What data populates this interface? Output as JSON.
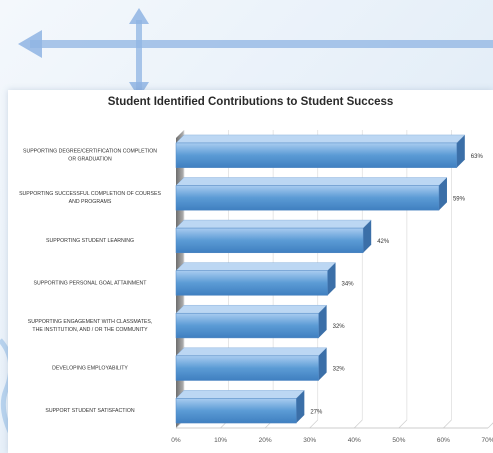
{
  "chart_data": {
    "type": "bar",
    "orientation": "horizontal",
    "title": "Student Identified Contributions to Student Success",
    "categories": [
      "SUPPORTING DEGREE/CERTIFICATION COMPLETION OR GRADUATION",
      "SUPPORTING SUCCESSFUL COMPLETION OF COURSES AND PROGRAMS",
      "SUPPORTING STUDENT LEARNING",
      "SUPPORTING PERSONAL GOAL ATTAINMENT",
      "SUPPORTING ENGAGEMENT WITH CLASSMATES, THE INSTITUTION, AND / OR THE COMMUNITY",
      "DEVELOPING EMPLOYABILITY",
      "SUPPORT STUDENT SATISFACTION"
    ],
    "category_lines": [
      [
        "SUPPORTING DEGREE/CERTIFICATION COMPLETION",
        "OR GRADUATION"
      ],
      [
        "SUPPORTING SUCCESSFUL COMPLETION OF COURSES",
        "AND PROGRAMS"
      ],
      [
        "SUPPORTING STUDENT LEARNING"
      ],
      [
        "SUPPORTING PERSONAL GOAL ATTAINMENT"
      ],
      [
        "SUPPORTING ENGAGEMENT WITH CLASSMATES,",
        "THE INSTITUTION, AND / OR THE COMMUNITY"
      ],
      [
        "DEVELOPING EMPLOYABILITY"
      ],
      [
        "SUPPORT STUDENT SATISFACTION"
      ]
    ],
    "values": [
      63,
      59,
      42,
      34,
      32,
      32,
      27
    ],
    "value_labels": [
      "63%",
      "59%",
      "42%",
      "34%",
      "32%",
      "32%",
      "27%"
    ],
    "xlim": [
      0,
      70
    ],
    "ticks": [
      0,
      10,
      20,
      30,
      40,
      50,
      60,
      70
    ],
    "tick_labels": [
      "0%",
      "10%",
      "20%",
      "30%",
      "40%",
      "50%",
      "60%",
      "70%"
    ],
    "grid": true,
    "bar_color": "#5b9bd5"
  }
}
